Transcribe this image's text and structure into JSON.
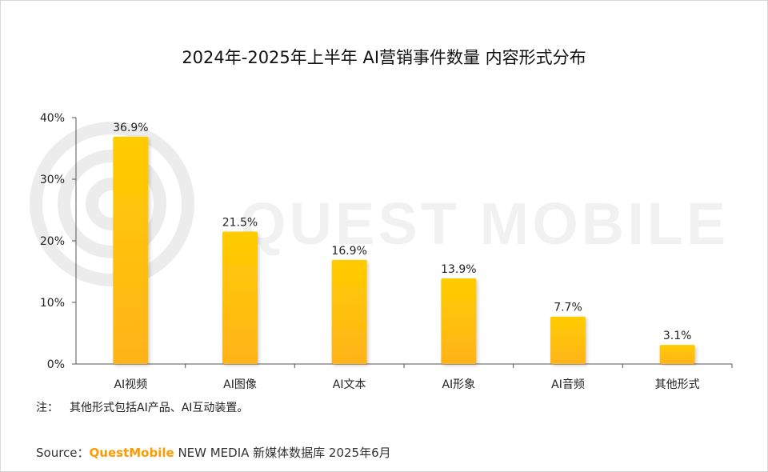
{
  "title": "2024年-2025年上半年 AI营销事件数量 内容形式分布",
  "watermark_text": "QUEST MOBILE",
  "chart_data": {
    "type": "bar",
    "title": "2024年-2025年上半年 AI营销事件数量 内容形式分布",
    "categories": [
      "AI视频",
      "AI图像",
      "AI文本",
      "AI形象",
      "AI音频",
      "其他形式"
    ],
    "values": [
      36.9,
      21.5,
      16.9,
      13.9,
      7.7,
      3.1
    ],
    "value_labels": [
      "36.9%",
      "21.5%",
      "16.9%",
      "13.9%",
      "7.7%",
      "3.1%"
    ],
    "yticks": [
      0,
      10,
      20,
      30,
      40
    ],
    "ytick_labels": [
      "0%",
      "10%",
      "20%",
      "30%",
      "40%"
    ],
    "ylim": [
      0,
      40
    ],
    "grid": false,
    "colors": {
      "bar_top": "#ffcc00",
      "bar_bottom": "#ffb31a",
      "axis": "#555555"
    }
  },
  "note": {
    "label": "注：",
    "text": "其他形式包括AI产品、AI互动装置。"
  },
  "source": {
    "label": "Source：",
    "brand": "QuestMobile",
    "text": " NEW MEDIA 新媒体数据库 2025年6月"
  }
}
